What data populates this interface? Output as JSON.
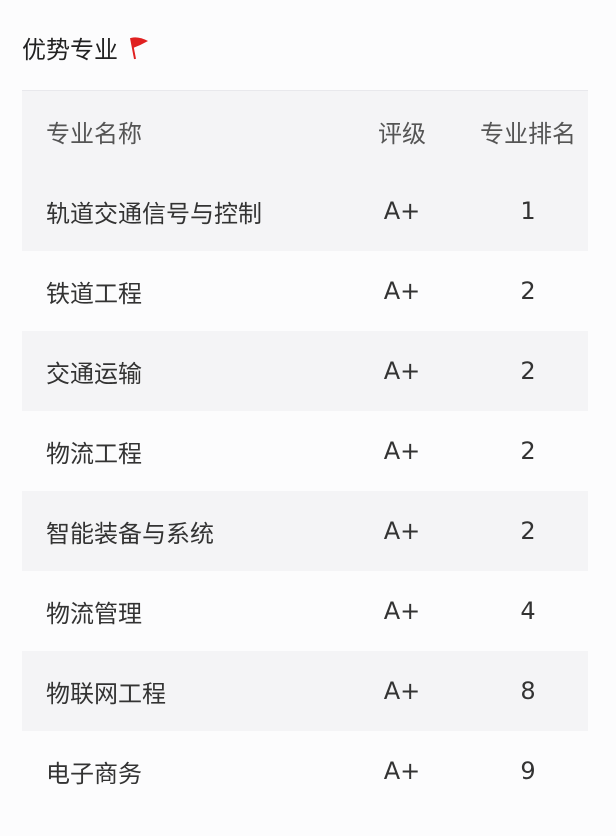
{
  "title": "优势专业",
  "flag_color": "#e02020",
  "headers": [
    "专业名称",
    "评级",
    "专业排名"
  ],
  "rows": [
    [
      "轨道交通信号与控制",
      "A+",
      "1"
    ],
    [
      "铁道工程",
      "A+",
      "2"
    ],
    [
      "交通运输",
      "A+",
      "2"
    ],
    [
      "物流工程",
      "A+",
      "2"
    ],
    [
      "智能装备与系统",
      "A+",
      "2"
    ],
    [
      "物流管理",
      "A+",
      "4"
    ],
    [
      "物联网工程",
      "A+",
      "8"
    ],
    [
      "电子商务",
      "A+",
      "9"
    ]
  ]
}
